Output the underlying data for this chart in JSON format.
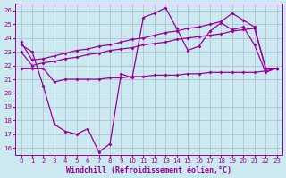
{
  "xlabel": "Windchill (Refroidissement éolien,°C)",
  "background_color": "#cce8f0",
  "plot_bg": "#cce8f0",
  "line_color": "#990099",
  "grid_color": "#aabbcc",
  "ylim": [
    15.5,
    26.5
  ],
  "xlim": [
    -0.5,
    23.5
  ],
  "yticks": [
    16,
    17,
    18,
    19,
    20,
    21,
    22,
    23,
    24,
    25,
    26
  ],
  "xticks": [
    0,
    1,
    2,
    3,
    4,
    5,
    6,
    7,
    8,
    9,
    10,
    11,
    12,
    13,
    14,
    15,
    16,
    17,
    18,
    19,
    20,
    21,
    22,
    23
  ],
  "line1_y": [
    23.5,
    23.0,
    20.5,
    17.7,
    17.2,
    17.0,
    17.4,
    15.7,
    16.3,
    21.4,
    21.1,
    25.5,
    25.8,
    26.2,
    24.7,
    23.1,
    23.4,
    24.5,
    25.1,
    24.6,
    24.8,
    23.5,
    21.5,
    21.8
  ],
  "line2_y": [
    23.7,
    22.4,
    22.5,
    22.7,
    22.9,
    23.1,
    23.2,
    23.4,
    23.5,
    23.7,
    23.9,
    24.0,
    24.2,
    24.4,
    24.5,
    24.7,
    24.8,
    25.0,
    25.2,
    25.8,
    25.3,
    24.8,
    21.8,
    21.8
  ],
  "line3_y": [
    23.0,
    22.0,
    22.2,
    22.3,
    22.5,
    22.6,
    22.8,
    22.9,
    23.1,
    23.2,
    23.3,
    23.5,
    23.6,
    23.7,
    23.9,
    24.0,
    24.1,
    24.2,
    24.3,
    24.5,
    24.6,
    24.7,
    21.8,
    21.8
  ],
  "line4_y": [
    21.8,
    21.8,
    21.8,
    20.8,
    21.0,
    21.0,
    21.0,
    21.0,
    21.1,
    21.1,
    21.2,
    21.2,
    21.3,
    21.3,
    21.3,
    21.4,
    21.4,
    21.5,
    21.5,
    21.5,
    21.5,
    21.5,
    21.6,
    21.8
  ],
  "marker": "D",
  "markersize": 2.0,
  "linewidth": 0.9,
  "tick_fontsize": 5,
  "xlabel_fontsize": 6
}
